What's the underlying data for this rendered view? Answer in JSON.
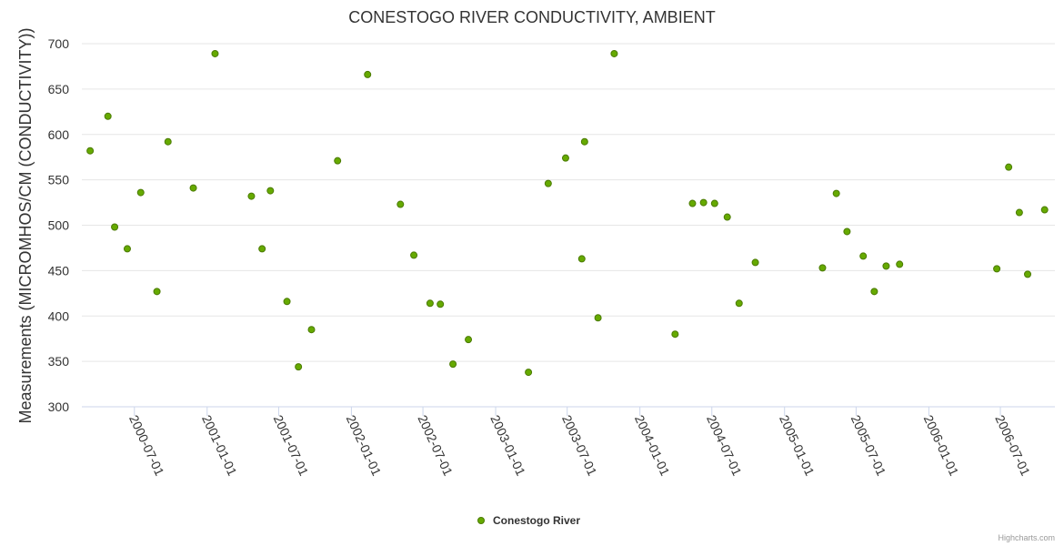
{
  "chart_data": {
    "type": "scatter",
    "title": "CONESTOGO RIVER CONDUCTIVITY, AMBIENT",
    "xlabel": "",
    "ylabel": "Measurements (MICROMHOS/CM (CONDUCTIVITY))",
    "ylim": [
      300,
      700
    ],
    "yticks": [
      300,
      350,
      400,
      450,
      500,
      550,
      600,
      650,
      700
    ],
    "xlim": [
      "2000-02-19",
      "2006-11-16"
    ],
    "xticks": [
      "2000-07-01",
      "2001-01-01",
      "2001-07-01",
      "2002-01-01",
      "2002-07-01",
      "2003-01-01",
      "2003-07-01",
      "2004-01-01",
      "2004-07-01",
      "2005-01-01",
      "2005-07-01",
      "2006-01-01",
      "2006-07-01"
    ],
    "grid": true,
    "legend_position": "bottom-center",
    "series": [
      {
        "name": "Conestogo River",
        "color": "#66aa00",
        "points": [
          [
            "2000-03-11",
            582
          ],
          [
            "2000-04-25",
            620
          ],
          [
            "2000-05-12",
            498
          ],
          [
            "2000-06-13",
            474
          ],
          [
            "2000-07-17",
            536
          ],
          [
            "2000-08-27",
            427
          ],
          [
            "2000-09-24",
            592
          ],
          [
            "2000-11-27",
            541
          ],
          [
            "2001-01-21",
            689
          ],
          [
            "2001-04-23",
            532
          ],
          [
            "2001-05-20",
            474
          ],
          [
            "2001-06-10",
            538
          ],
          [
            "2001-07-22",
            416
          ],
          [
            "2001-08-20",
            344
          ],
          [
            "2001-09-22",
            385
          ],
          [
            "2001-11-27",
            571
          ],
          [
            "2002-02-11",
            666
          ],
          [
            "2002-05-05",
            523
          ],
          [
            "2002-06-08",
            467
          ],
          [
            "2002-07-19",
            414
          ],
          [
            "2002-08-14",
            413
          ],
          [
            "2002-09-15",
            347
          ],
          [
            "2002-10-24",
            374
          ],
          [
            "2003-03-25",
            338
          ],
          [
            "2003-05-14",
            546
          ],
          [
            "2003-06-27",
            574
          ],
          [
            "2003-08-07",
            463
          ],
          [
            "2003-08-14",
            592
          ],
          [
            "2003-09-17",
            398
          ],
          [
            "2003-10-28",
            689
          ],
          [
            "2004-03-30",
            380
          ],
          [
            "2004-05-13",
            524
          ],
          [
            "2004-06-10",
            525
          ],
          [
            "2004-07-08",
            524
          ],
          [
            "2004-08-09",
            509
          ],
          [
            "2004-09-08",
            414
          ],
          [
            "2004-10-19",
            459
          ],
          [
            "2005-04-07",
            453
          ],
          [
            "2005-05-12",
            535
          ],
          [
            "2005-06-08",
            493
          ],
          [
            "2005-07-19",
            466
          ],
          [
            "2005-08-16",
            427
          ],
          [
            "2005-09-15",
            455
          ],
          [
            "2005-10-19",
            457
          ],
          [
            "2006-06-22",
            452
          ],
          [
            "2006-07-22",
            564
          ],
          [
            "2006-08-18",
            514
          ],
          [
            "2006-09-08",
            446
          ],
          [
            "2006-10-21",
            517
          ]
        ]
      }
    ]
  },
  "credits": "Highcharts.com"
}
